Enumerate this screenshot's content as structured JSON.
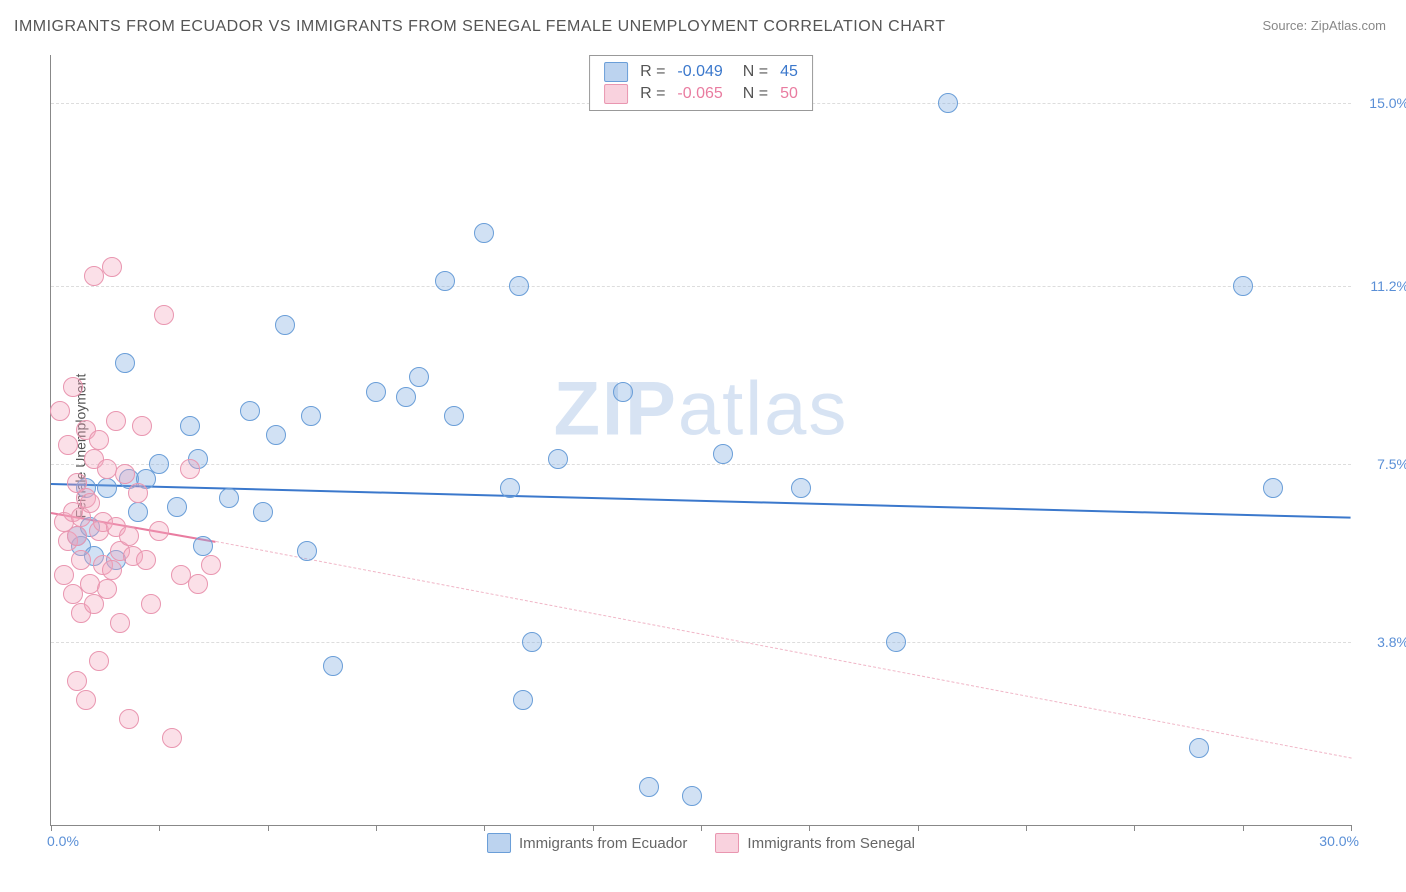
{
  "title": "IMMIGRANTS FROM ECUADOR VS IMMIGRANTS FROM SENEGAL FEMALE UNEMPLOYMENT CORRELATION CHART",
  "source": "Source: ZipAtlas.com",
  "ylabel": "Female Unemployment",
  "watermark_bold": "ZIP",
  "watermark_rest": "atlas",
  "chart": {
    "type": "scatter",
    "xlim": [
      0,
      30
    ],
    "ylim": [
      0,
      16
    ],
    "x_min_label": "0.0%",
    "x_max_label": "30.0%",
    "y_ticks": [
      3.8,
      7.5,
      11.2,
      15.0
    ],
    "y_tick_labels": [
      "3.8%",
      "7.5%",
      "11.2%",
      "15.0%"
    ],
    "x_tick_positions": [
      0,
      2.5,
      5,
      7.5,
      10,
      12.5,
      15,
      17.5,
      20,
      22.5,
      25,
      27.5,
      30
    ],
    "grid_color": "#dddddd",
    "background_color": "#ffffff",
    "series": [
      {
        "name": "Immigrants from Ecuador",
        "color": "#7aa8e0",
        "border": "#6a9ed8",
        "marker_radius": 10,
        "R": "-0.049",
        "N": "45",
        "trend": {
          "x1": 0,
          "y1": 7.1,
          "x2": 30,
          "y2": 6.4,
          "color": "#3b78cc",
          "width": 2
        },
        "points": [
          [
            0.6,
            6.0
          ],
          [
            0.7,
            5.8
          ],
          [
            0.8,
            7.0
          ],
          [
            0.9,
            6.2
          ],
          [
            1.0,
            5.6
          ],
          [
            1.3,
            7.0
          ],
          [
            1.5,
            5.5
          ],
          [
            1.7,
            9.6
          ],
          [
            1.8,
            7.2
          ],
          [
            2.0,
            6.5
          ],
          [
            2.2,
            7.2
          ],
          [
            2.5,
            7.5
          ],
          [
            2.9,
            6.6
          ],
          [
            3.2,
            8.3
          ],
          [
            3.5,
            5.8
          ],
          [
            3.4,
            7.6
          ],
          [
            4.1,
            6.8
          ],
          [
            4.6,
            8.6
          ],
          [
            4.9,
            6.5
          ],
          [
            5.2,
            8.1
          ],
          [
            5.4,
            10.4
          ],
          [
            5.9,
            5.7
          ],
          [
            6.0,
            8.5
          ],
          [
            6.5,
            3.3
          ],
          [
            7.5,
            9.0
          ],
          [
            8.2,
            8.9
          ],
          [
            8.5,
            9.3
          ],
          [
            9.1,
            11.3
          ],
          [
            9.3,
            8.5
          ],
          [
            10.0,
            12.3
          ],
          [
            10.6,
            7.0
          ],
          [
            10.8,
            11.2
          ],
          [
            10.9,
            2.6
          ],
          [
            11.1,
            3.8
          ],
          [
            11.7,
            7.6
          ],
          [
            13.2,
            9.0
          ],
          [
            13.8,
            0.8
          ],
          [
            14.8,
            0.6
          ],
          [
            15.5,
            7.7
          ],
          [
            17.3,
            7.0
          ],
          [
            19.5,
            3.8
          ],
          [
            20.7,
            15.0
          ],
          [
            26.5,
            1.6
          ],
          [
            27.5,
            11.2
          ],
          [
            28.2,
            7.0
          ]
        ]
      },
      {
        "name": "Immigrants from Senegal",
        "color": "#f4a6be",
        "border": "#e996b0",
        "marker_radius": 10,
        "R": "-0.065",
        "N": "50",
        "trend_solid": {
          "x1": 0,
          "y1": 6.5,
          "x2": 3.8,
          "y2": 5.9,
          "color": "#e97ca0",
          "width": 2
        },
        "trend_dash": {
          "x1": 3.8,
          "y1": 5.9,
          "x2": 30,
          "y2": 1.4,
          "color": "#f0b6c7"
        },
        "points": [
          [
            0.2,
            8.6
          ],
          [
            0.3,
            6.3
          ],
          [
            0.3,
            5.2
          ],
          [
            0.4,
            7.9
          ],
          [
            0.4,
            5.9
          ],
          [
            0.5,
            9.1
          ],
          [
            0.5,
            6.5
          ],
          [
            0.5,
            4.8
          ],
          [
            0.6,
            6.0
          ],
          [
            0.6,
            7.1
          ],
          [
            0.6,
            3.0
          ],
          [
            0.7,
            6.4
          ],
          [
            0.7,
            5.5
          ],
          [
            0.7,
            4.4
          ],
          [
            0.8,
            8.2
          ],
          [
            0.8,
            6.8
          ],
          [
            0.8,
            2.6
          ],
          [
            0.9,
            5.0
          ],
          [
            0.9,
            6.7
          ],
          [
            1.0,
            11.4
          ],
          [
            1.0,
            7.6
          ],
          [
            1.0,
            4.6
          ],
          [
            1.1,
            6.1
          ],
          [
            1.1,
            8.0
          ],
          [
            1.1,
            3.4
          ],
          [
            1.2,
            5.4
          ],
          [
            1.2,
            6.3
          ],
          [
            1.3,
            7.4
          ],
          [
            1.3,
            4.9
          ],
          [
            1.4,
            11.6
          ],
          [
            1.4,
            5.3
          ],
          [
            1.5,
            8.4
          ],
          [
            1.5,
            6.2
          ],
          [
            1.6,
            5.7
          ],
          [
            1.6,
            4.2
          ],
          [
            1.7,
            7.3
          ],
          [
            1.8,
            6.0
          ],
          [
            1.8,
            2.2
          ],
          [
            1.9,
            5.6
          ],
          [
            2.0,
            6.9
          ],
          [
            2.1,
            8.3
          ],
          [
            2.2,
            5.5
          ],
          [
            2.3,
            4.6
          ],
          [
            2.5,
            6.1
          ],
          [
            2.6,
            10.6
          ],
          [
            2.8,
            1.8
          ],
          [
            3.0,
            5.2
          ],
          [
            3.2,
            7.4
          ],
          [
            3.4,
            5.0
          ],
          [
            3.7,
            5.4
          ]
        ]
      }
    ]
  },
  "legend_top": {
    "rows": [
      {
        "swatch": "blue",
        "r_label": "R =",
        "r_val": "-0.049",
        "n_label": "N =",
        "n_val": "45",
        "val_class": "lg-val-blue"
      },
      {
        "swatch": "pink",
        "r_label": "R =",
        "r_val": "-0.065",
        "n_label": "N =",
        "n_val": "50",
        "val_class": "lg-val-pink"
      }
    ]
  },
  "legend_bottom": {
    "items": [
      {
        "swatch": "blue",
        "label": "Immigrants from Ecuador"
      },
      {
        "swatch": "pink",
        "label": "Immigrants from Senegal"
      }
    ]
  }
}
